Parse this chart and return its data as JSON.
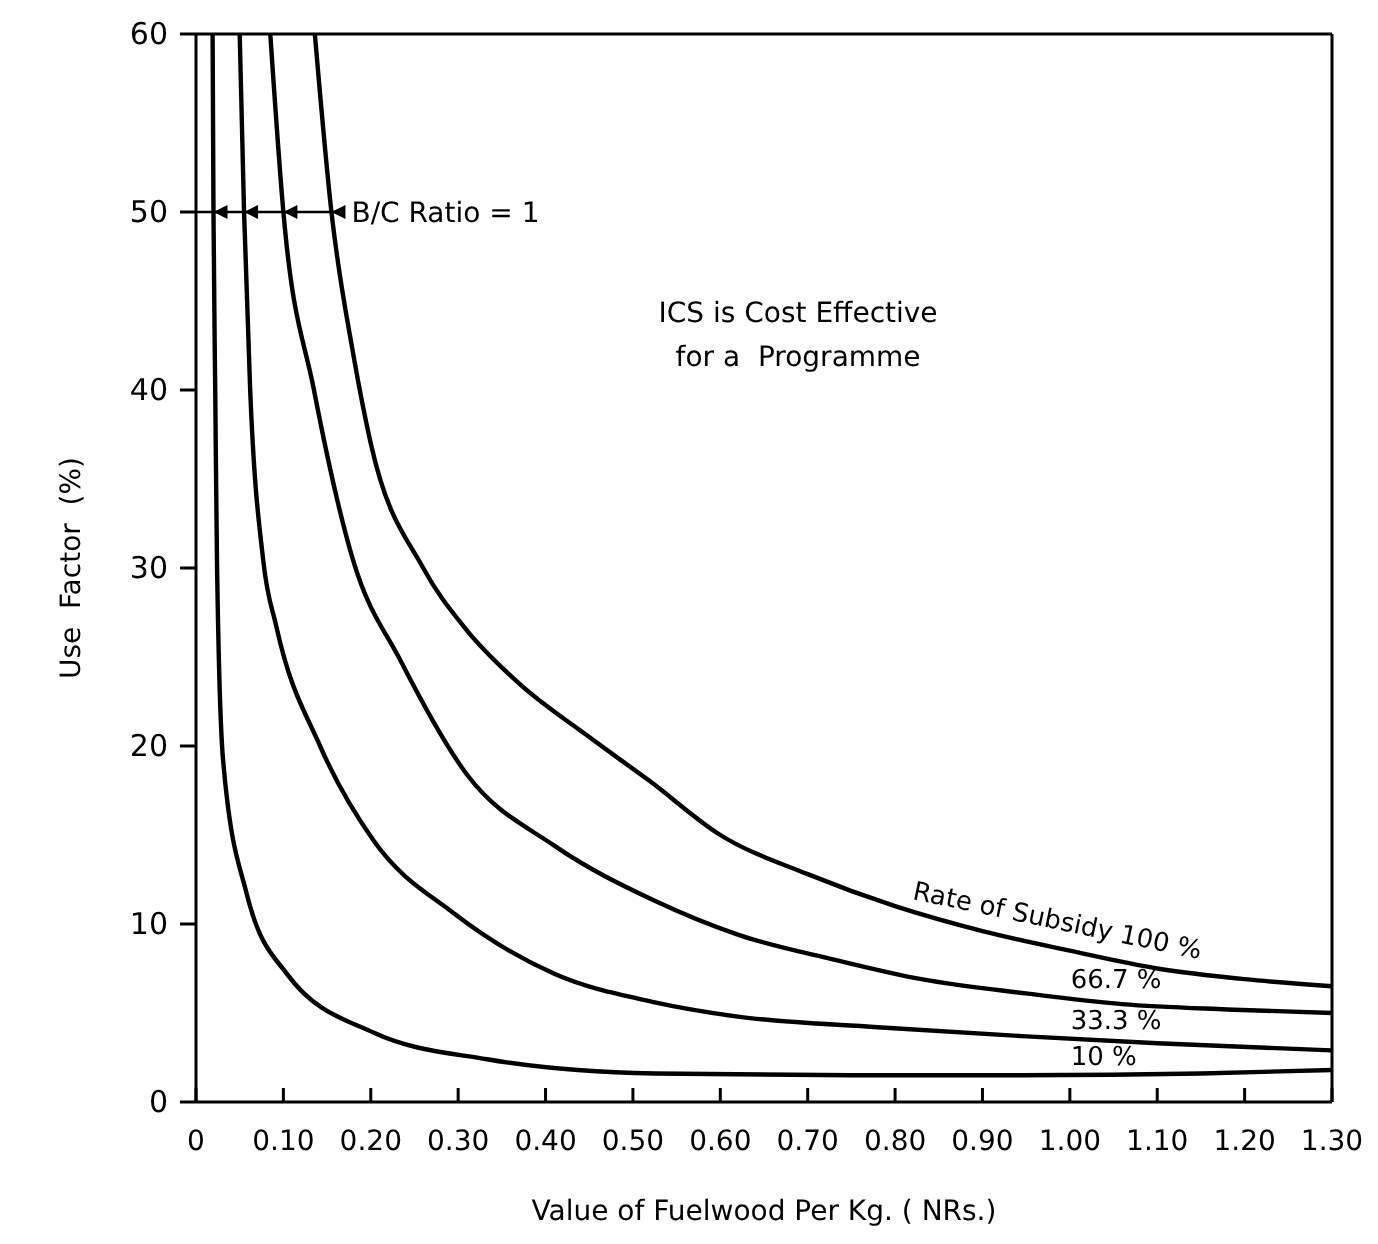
{
  "chart_data": {
    "type": "line",
    "xlabel": "Value of Fuelwood Per Kg. ( NRs.)",
    "ylabel": "Use  Factor  (%)",
    "xlim": [
      0,
      1.3
    ],
    "ylim": [
      0,
      60
    ],
    "xticks": [
      0,
      {
        "value": 0.1,
        "label": "0.10"
      },
      {
        "value": 0.2,
        "label": "0.20"
      },
      {
        "value": 0.3,
        "label": "0.30"
      },
      {
        "value": 0.4,
        "label": "0.40"
      },
      {
        "value": 0.5,
        "label": "0.50"
      },
      {
        "value": 0.6,
        "label": "0.60"
      },
      {
        "value": 0.7,
        "label": "0.70"
      },
      {
        "value": 0.8,
        "label": "0.80"
      },
      {
        "value": 0.9,
        "label": "0.90"
      },
      {
        "value": 1.0,
        "label": "1.00"
      },
      {
        "value": 1.1,
        "label": "1.10"
      },
      {
        "value": 1.2,
        "label": "1.20"
      },
      {
        "value": 1.3,
        "label": "1.30"
      }
    ],
    "yticks": [
      0,
      10,
      20,
      30,
      40,
      50,
      60
    ],
    "grid": false,
    "legend": false,
    "marker": "none",
    "line_style": "solid",
    "series": [
      {
        "name": "Rate of Subsidy 100 %",
        "color": "#000000",
        "x": [
          0.136,
          0.155,
          0.18,
          0.2,
          0.26,
          0.31,
          0.37,
          0.45,
          0.52,
          0.6,
          0.7,
          0.8,
          0.9,
          1.0,
          1.1,
          1.2,
          1.3
        ],
        "values": [
          60,
          50,
          42,
          37,
          30,
          26.5,
          23.5,
          20.5,
          18,
          15,
          12.8,
          11,
          9.6,
          8.5,
          7.5,
          6.9,
          6.5
        ]
      },
      {
        "name": "66.7 %",
        "color": "#000000",
        "x": [
          0.085,
          0.1,
          0.135,
          0.18,
          0.234,
          0.31,
          0.41,
          0.525,
          0.62,
          0.73,
          0.83,
          0.95,
          1.06,
          1.18,
          1.3
        ],
        "values": [
          60,
          50,
          40,
          30.4,
          24.8,
          18.4,
          14.4,
          11.3,
          9.4,
          8.0,
          6.9,
          6.1,
          5.5,
          5.2,
          5.0
        ]
      },
      {
        "name": "33.3 %",
        "color": "#000000",
        "x": [
          0.05,
          0.055,
          0.062,
          0.077,
          0.092,
          0.142,
          0.203,
          0.295,
          0.41,
          0.525,
          0.62,
          0.78,
          0.945,
          1.1,
          1.3
        ],
        "values": [
          60,
          50,
          40,
          30.4,
          26.7,
          20,
          14.7,
          10.6,
          7.2,
          5.6,
          4.8,
          4.2,
          3.7,
          3.3,
          2.9
        ]
      },
      {
        "name": "10 %",
        "color": "#000000",
        "x": [
          0.019,
          0.02,
          0.022,
          0.024,
          0.031,
          0.058,
          0.104,
          0.203,
          0.333,
          0.525,
          0.75,
          0.945,
          1.15,
          1.3
        ],
        "values": [
          60,
          50,
          40,
          30.4,
          19.2,
          11.7,
          7.2,
          3.9,
          2.4,
          1.6,
          1.5,
          1.5,
          1.6,
          1.8
        ]
      }
    ],
    "annotations": [
      {
        "text": "B/C Ratio = 1",
        "x": 0.155,
        "y": 50
      },
      "ICS is Cost Effective\nfor a  Programme"
    ]
  }
}
